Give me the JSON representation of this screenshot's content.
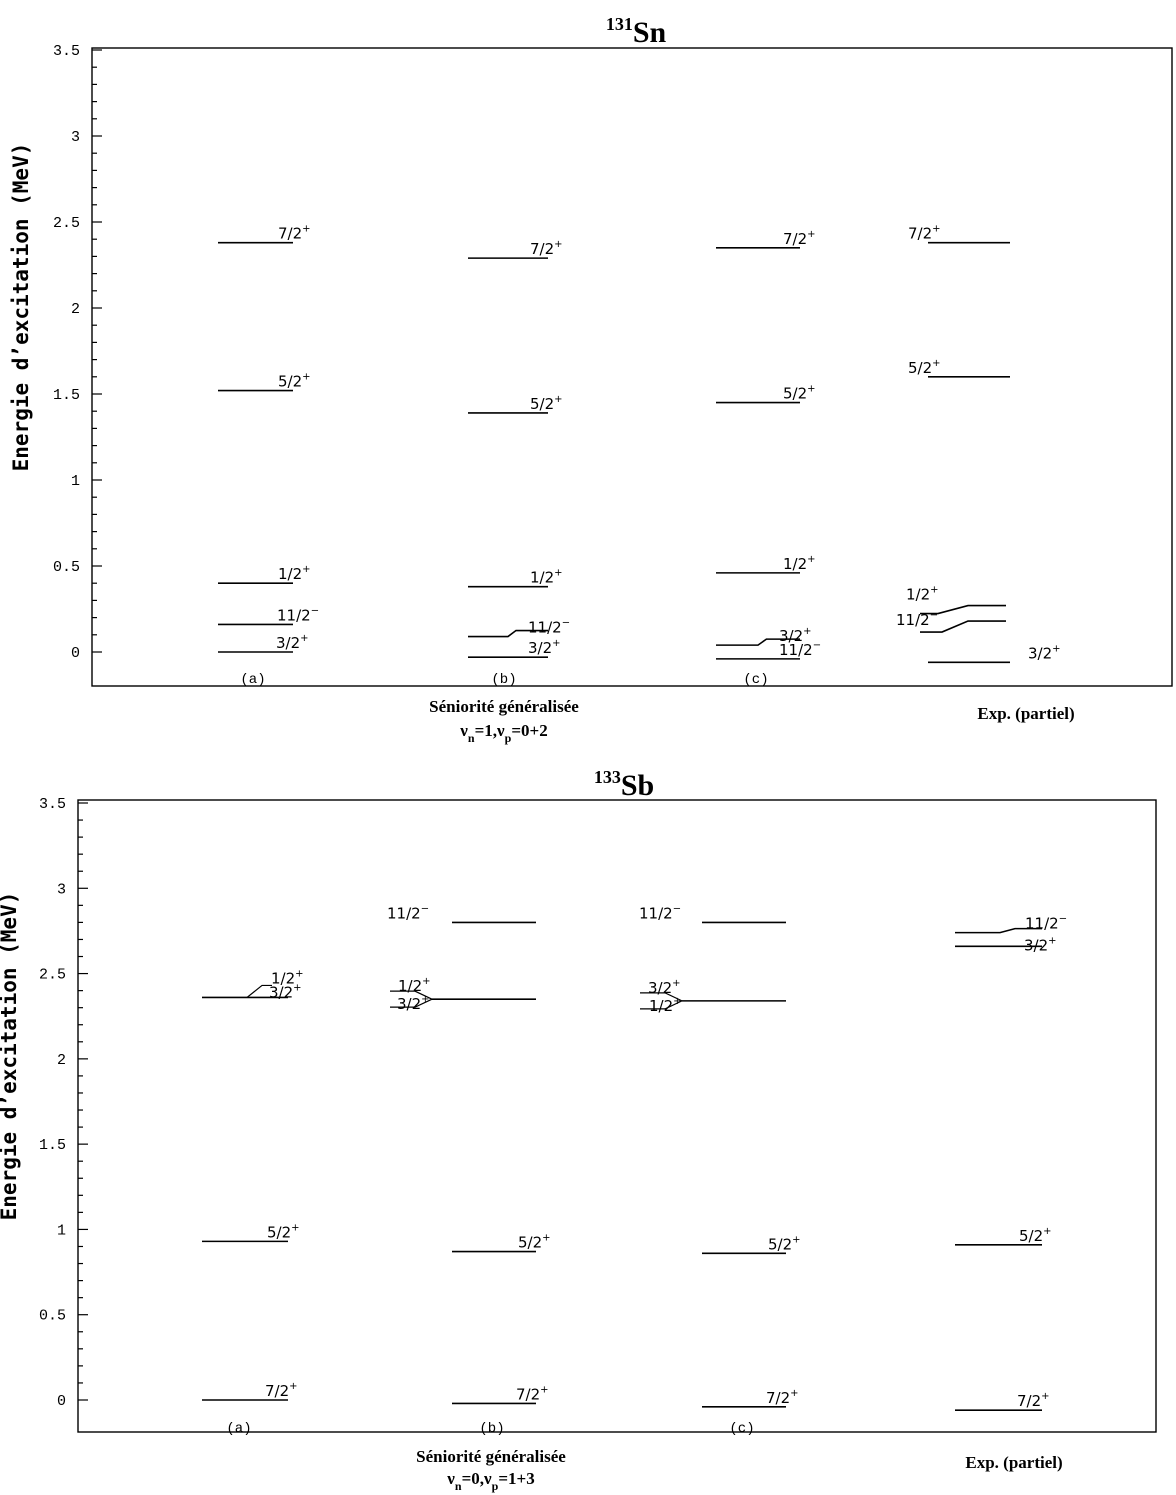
{
  "chart_data": [
    {
      "type": "level-scheme",
      "title": {
        "mass": "131",
        "element": "Sn"
      },
      "ylabel": "Energie d’excitation (MeV)",
      "ylim": [
        -0.2,
        3.5
      ],
      "yticks": [
        "0",
        "0.5",
        "1",
        "1.5",
        "2",
        "2.5",
        "3",
        "3.5"
      ],
      "column_labels": [
        "(a)",
        "(b)",
        "(c)"
      ],
      "caption_main": "Séniorité généralisée",
      "caption_sub": {
        "nu1": "ν",
        "sub1": "n",
        "eq1": "=1,",
        "nu2": "ν",
        "sub2": "p",
        "eq2": "=0+2"
      },
      "caption_exp": "Exp. (partiel)",
      "columns": [
        {
          "name": "(a)",
          "levels": [
            {
              "spin": "7/2",
              "parity": "+",
              "energy": 2.38
            },
            {
              "spin": "5/2",
              "parity": "+",
              "energy": 1.52
            },
            {
              "spin": "1/2",
              "parity": "+",
              "energy": 0.4
            },
            {
              "spin": "11/2",
              "parity": "−",
              "energy": 0.16
            },
            {
              "spin": "3/2",
              "parity": "+",
              "energy": 0.0
            }
          ]
        },
        {
          "name": "(b)",
          "levels": [
            {
              "spin": "7/2",
              "parity": "+",
              "energy": 2.29
            },
            {
              "spin": "5/2",
              "parity": "+",
              "energy": 1.39
            },
            {
              "spin": "1/2",
              "parity": "+",
              "energy": 0.38
            },
            {
              "spin": "11/2",
              "parity": "−",
              "energy": 0.09
            },
            {
              "spin": "3/2",
              "parity": "+",
              "energy": -0.03
            }
          ]
        },
        {
          "name": "(c)",
          "levels": [
            {
              "spin": "7/2",
              "parity": "+",
              "energy": 2.35
            },
            {
              "spin": "5/2",
              "parity": "+",
              "energy": 1.45
            },
            {
              "spin": "1/2",
              "parity": "+",
              "energy": 0.46
            },
            {
              "spin": "3/2",
              "parity": "+",
              "energy": 0.04
            },
            {
              "spin": "11/2",
              "parity": "−",
              "energy": -0.04
            }
          ]
        },
        {
          "name": "Exp. (partiel)",
          "levels": [
            {
              "spin": "7/2",
              "parity": "+",
              "energy": 2.38
            },
            {
              "spin": "5/2",
              "parity": "+",
              "energy": 1.6
            },
            {
              "spin": "1/2",
              "parity": "+",
              "energy": 0.27
            },
            {
              "spin": "11/2",
              "parity": "−",
              "energy": 0.18
            },
            {
              "spin": "3/2",
              "parity": "+",
              "energy": -0.06
            }
          ]
        }
      ]
    },
    {
      "type": "level-scheme",
      "title": {
        "mass": "133",
        "element": "Sb"
      },
      "ylabel": "Energie d’excitation (MeV)",
      "ylim": [
        -0.2,
        3.5
      ],
      "yticks": [
        "0",
        "0.5",
        "1",
        "1.5",
        "2",
        "2.5",
        "3",
        "3.5"
      ],
      "column_labels": [
        "(a)",
        "(b)",
        "(c)"
      ],
      "caption_main": "Séniorité généralisée",
      "caption_sub": {
        "nu1": "ν",
        "sub1": "n",
        "eq1": "=0,",
        "nu2": "ν",
        "sub2": "p",
        "eq2": "=1+3"
      },
      "caption_exp": "Exp. (partiel)",
      "columns": [
        {
          "name": "(a)",
          "levels": [
            {
              "spin": "1/2",
              "parity": "+",
              "energy": 2.36
            },
            {
              "spin": "3/2",
              "parity": "+",
              "energy": 2.36
            },
            {
              "spin": "5/2",
              "parity": "+",
              "energy": 0.93
            },
            {
              "spin": "7/2",
              "parity": "+",
              "energy": 0.0
            }
          ]
        },
        {
          "name": "(b)",
          "levels": [
            {
              "spin": "11/2",
              "parity": "−",
              "energy": 2.8
            },
            {
              "spin": "1/2",
              "parity": "+",
              "energy": 2.35
            },
            {
              "spin": "3/2",
              "parity": "+",
              "energy": 2.35
            },
            {
              "spin": "5/2",
              "parity": "+",
              "energy": 0.87
            },
            {
              "spin": "7/2",
              "parity": "+",
              "energy": -0.02
            }
          ]
        },
        {
          "name": "(c)",
          "levels": [
            {
              "spin": "11/2",
              "parity": "−",
              "energy": 2.8
            },
            {
              "spin": "3/2",
              "parity": "+",
              "energy": 2.34
            },
            {
              "spin": "1/2",
              "parity": "+",
              "energy": 2.34
            },
            {
              "spin": "5/2",
              "parity": "+",
              "energy": 0.86
            },
            {
              "spin": "7/2",
              "parity": "+",
              "energy": -0.04
            }
          ]
        },
        {
          "name": "Exp. (partiel)",
          "levels": [
            {
              "spin": "11/2",
              "parity": "−",
              "energy": 2.74
            },
            {
              "spin": "3/2",
              "parity": "+",
              "energy": 2.66
            },
            {
              "spin": "5/2",
              "parity": "+",
              "energy": 0.91
            },
            {
              "spin": "7/2",
              "parity": "+",
              "energy": -0.06
            }
          ]
        }
      ]
    }
  ]
}
